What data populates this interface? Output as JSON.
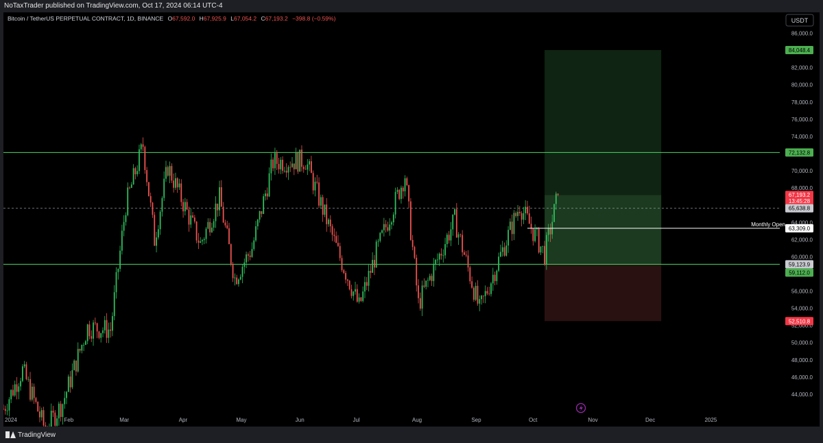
{
  "header": {
    "published_by": "NoTaxTrader published on TradingView.com, Oct 17, 2024 06:14 UTC-4"
  },
  "footer": {
    "brand": "TradingView"
  },
  "symbol_bar": {
    "name": "Bitcoin / TetherUS PERPETUAL CONTRACT, 1D, BINANCE",
    "o_label": "O",
    "o_value": "67,592.0",
    "h_label": "H",
    "h_value": "67,925.9",
    "l_label": "L",
    "l_value": "67,054.2",
    "c_label": "C",
    "c_value": "67,193.2",
    "change": "−398.8 (−0.59%)"
  },
  "currency_button": "USDT",
  "colors": {
    "background": "#000000",
    "up": "#26a69a",
    "up_green": "#2fbf5c",
    "down": "#ef5350",
    "level_line": "#4cd964",
    "target_zone": "#1b3a1f",
    "stop_zone": "#2a1111",
    "axis_text": "#b2b5be"
  },
  "chart_data": {
    "type": "candlestick",
    "x_tick_labels": [
      "2024",
      "Feb",
      "Mar",
      "Apr",
      "May",
      "Jun",
      "Jul",
      "Aug",
      "Sep",
      "Oct",
      "Nov",
      "Dec",
      "2025"
    ],
    "y_tick_labels": [
      "86,000.0",
      "84,000.0",
      "82,000.0",
      "80,000.0",
      "78,000.0",
      "76,000.0",
      "74,000.0",
      "72,000.0",
      "70,000.0",
      "68,000.0",
      "66,000.0",
      "64,000.0",
      "62,000.0",
      "60,000.0",
      "58,000.0",
      "56,000.0",
      "54,000.0",
      "52,000.0",
      "50,000.0",
      "48,000.0",
      "46,000.0",
      "44,000.0"
    ],
    "y_range": [
      42000,
      87000
    ],
    "x_range": [
      "2024-01-01",
      "2025-02-10"
    ],
    "anchors": [
      {
        "date": "2024-01-01",
        "price": 42300
      },
      {
        "date": "2024-01-11",
        "price": 46800
      },
      {
        "date": "2024-01-23",
        "price": 39800
      },
      {
        "date": "2024-02-01",
        "price": 43000
      },
      {
        "date": "2024-02-14",
        "price": 51800
      },
      {
        "date": "2024-02-26",
        "price": 51500
      },
      {
        "date": "2024-03-05",
        "price": 66000
      },
      {
        "date": "2024-03-14",
        "price": 73000
      },
      {
        "date": "2024-03-20",
        "price": 62000
      },
      {
        "date": "2024-03-27",
        "price": 70500
      },
      {
        "date": "2024-04-13",
        "price": 61500
      },
      {
        "date": "2024-04-23",
        "price": 66800
      },
      {
        "date": "2024-05-01",
        "price": 57500
      },
      {
        "date": "2024-05-10",
        "price": 61000
      },
      {
        "date": "2024-05-21",
        "price": 71000
      },
      {
        "date": "2024-06-07",
        "price": 71200
      },
      {
        "date": "2024-06-24",
        "price": 60500
      },
      {
        "date": "2024-07-05",
        "price": 54200
      },
      {
        "date": "2024-07-14",
        "price": 60500
      },
      {
        "date": "2024-07-29",
        "price": 69500
      },
      {
        "date": "2024-08-05",
        "price": 54500
      },
      {
        "date": "2024-08-24",
        "price": 64300
      },
      {
        "date": "2024-09-06",
        "price": 53800
      },
      {
        "date": "2024-09-27",
        "price": 66000
      },
      {
        "date": "2024-10-10",
        "price": 60300
      },
      {
        "date": "2024-10-17",
        "price": 67193
      }
    ],
    "horizontal_levels": [
      {
        "price": 72132.8,
        "label": "72,132.8",
        "style": "solid"
      },
      {
        "price": 59123.9,
        "label": "59,123.9",
        "style": "solid"
      },
      {
        "price": 65638.8,
        "label": "65,638.8",
        "style": "dashed"
      }
    ],
    "monthly_open": {
      "price": 63309.0,
      "label": "63,309.0",
      "text": "Monthly Open",
      "from": "2024-10-01"
    },
    "position": {
      "entry": 59112.0,
      "entry_label": "59,112.0",
      "target": 84048.4,
      "target_label": "84,048.4",
      "stop": 52510.8,
      "stop_label": "52,510.8",
      "current": 67193.2,
      "current_label": "67,193.2",
      "countdown": "13:45:28",
      "from": "2024-10-10",
      "to": "2024-12-10"
    }
  }
}
